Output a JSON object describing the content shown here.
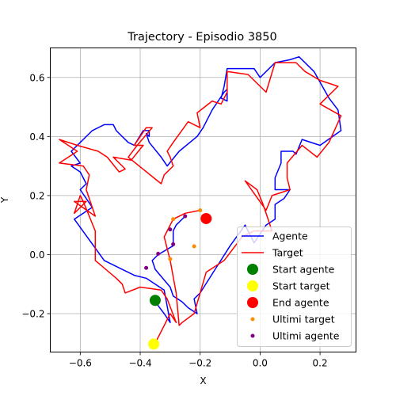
{
  "chart_data": {
    "type": "line",
    "title": "Trajectory - Episodio 3850",
    "xlabel": "X",
    "ylabel": "Y",
    "xlim": [
      -0.7,
      0.32
    ],
    "ylim": [
      -0.33,
      0.7
    ],
    "x_ticks": [
      -0.6,
      -0.4,
      -0.2,
      0.0,
      0.2
    ],
    "x_tick_labels": [
      "−0.6",
      "−0.4",
      "−0.2",
      "0.0",
      "0.2"
    ],
    "y_ticks": [
      -0.2,
      0.0,
      0.2,
      0.4,
      0.6
    ],
    "y_tick_labels": [
      "−0.2",
      "0.0",
      "0.2",
      "0.4",
      "0.6"
    ],
    "grid": true,
    "legend_position": "lower-right",
    "series": [
      {
        "name": "Agente",
        "kind": "line",
        "color": "#0000ff",
        "points": [
          [
            -0.35,
            -0.16
          ],
          [
            -0.32,
            -0.2
          ],
          [
            -0.3,
            -0.23
          ],
          [
            -0.32,
            -0.12
          ],
          [
            -0.38,
            -0.08
          ],
          [
            -0.42,
            -0.07
          ],
          [
            -0.52,
            -0.02
          ],
          [
            -0.62,
            0.12
          ],
          [
            -0.56,
            0.16
          ],
          [
            -0.6,
            0.22
          ],
          [
            -0.58,
            0.24
          ],
          [
            -0.6,
            0.28
          ],
          [
            -0.63,
            0.3
          ],
          [
            -0.6,
            0.31
          ],
          [
            -0.63,
            0.35
          ],
          [
            -0.6,
            0.38
          ],
          [
            -0.56,
            0.42
          ],
          [
            -0.52,
            0.44
          ],
          [
            -0.49,
            0.44
          ],
          [
            -0.48,
            0.42
          ],
          [
            -0.47,
            0.41
          ],
          [
            -0.44,
            0.38
          ],
          [
            -0.42,
            0.37
          ],
          [
            -0.39,
            0.42
          ],
          [
            -0.37,
            0.42
          ],
          [
            -0.37,
            0.4
          ],
          [
            -0.38,
            0.41
          ],
          [
            -0.37,
            0.38
          ],
          [
            -0.33,
            0.33
          ],
          [
            -0.31,
            0.3
          ],
          [
            -0.27,
            0.35
          ],
          [
            -0.21,
            0.4
          ],
          [
            -0.19,
            0.43
          ],
          [
            -0.16,
            0.49
          ],
          [
            -0.12,
            0.55
          ],
          [
            -0.11,
            0.56
          ],
          [
            -0.11,
            0.52
          ],
          [
            -0.13,
            0.53
          ],
          [
            -0.12,
            0.57
          ],
          [
            -0.11,
            0.63
          ],
          [
            -0.02,
            0.63
          ],
          [
            0.0,
            0.6
          ],
          [
            0.05,
            0.65
          ],
          [
            0.1,
            0.66
          ],
          [
            0.13,
            0.67
          ],
          [
            0.18,
            0.62
          ],
          [
            0.23,
            0.53
          ],
          [
            0.26,
            0.49
          ],
          [
            0.27,
            0.42
          ],
          [
            0.2,
            0.37
          ],
          [
            0.14,
            0.39
          ],
          [
            0.12,
            0.34
          ],
          [
            0.11,
            0.35
          ],
          [
            0.07,
            0.35
          ],
          [
            0.07,
            0.31
          ],
          [
            0.05,
            0.26
          ],
          [
            0.05,
            0.22
          ],
          [
            0.1,
            0.22
          ],
          [
            0.08,
            0.19
          ],
          [
            0.05,
            0.17
          ],
          [
            0.05,
            0.12
          ],
          [
            0.02,
            0.1
          ],
          [
            -0.02,
            0.04
          ],
          [
            -0.05,
            0.1
          ],
          [
            -0.1,
            0.03
          ],
          [
            -0.15,
            -0.05
          ],
          [
            -0.2,
            -0.13
          ],
          [
            -0.22,
            -0.15
          ],
          [
            -0.21,
            -0.2
          ],
          [
            -0.24,
            -0.18
          ],
          [
            -0.26,
            -0.16
          ],
          [
            -0.29,
            -0.14
          ],
          [
            -0.3,
            -0.11
          ],
          [
            -0.35,
            -0.05
          ],
          [
            -0.36,
            -0.02
          ],
          [
            -0.34,
            0.0
          ],
          [
            -0.29,
            0.03
          ],
          [
            -0.29,
            0.08
          ],
          [
            -0.28,
            0.1
          ],
          [
            -0.25,
            0.13
          ]
        ]
      },
      {
        "name": "Target",
        "kind": "line",
        "color": "#ff0000",
        "points": [
          [
            -0.35,
            -0.3
          ],
          [
            -0.3,
            -0.2
          ],
          [
            -0.28,
            -0.23
          ],
          [
            -0.31,
            -0.15
          ],
          [
            -0.33,
            -0.12
          ],
          [
            -0.4,
            -0.11
          ],
          [
            -0.45,
            -0.13
          ],
          [
            -0.46,
            -0.1
          ],
          [
            -0.48,
            -0.08
          ],
          [
            -0.55,
            -0.02
          ],
          [
            -0.55,
            0.08
          ],
          [
            -0.59,
            0.18
          ],
          [
            -0.6,
            0.2
          ],
          [
            -0.62,
            0.14
          ],
          [
            -0.58,
            0.18
          ],
          [
            -0.62,
            0.18
          ],
          [
            -0.55,
            0.13
          ],
          [
            -0.58,
            0.22
          ],
          [
            -0.57,
            0.27
          ],
          [
            -0.59,
            0.3
          ],
          [
            -0.67,
            0.31
          ],
          [
            -0.61,
            0.35
          ],
          [
            -0.67,
            0.39
          ],
          [
            -0.61,
            0.37
          ],
          [
            -0.54,
            0.35
          ],
          [
            -0.51,
            0.33
          ],
          [
            -0.47,
            0.28
          ],
          [
            -0.45,
            0.29
          ],
          [
            -0.49,
            0.33
          ],
          [
            -0.43,
            0.32
          ],
          [
            -0.39,
            0.37
          ],
          [
            -0.42,
            0.37
          ],
          [
            -0.38,
            0.43
          ],
          [
            -0.36,
            0.43
          ],
          [
            -0.41,
            0.37
          ],
          [
            -0.44,
            0.33
          ],
          [
            -0.33,
            0.24
          ],
          [
            -0.32,
            0.27
          ],
          [
            -0.29,
            0.3
          ],
          [
            -0.3,
            0.33
          ],
          [
            -0.31,
            0.35
          ],
          [
            -0.29,
            0.38
          ],
          [
            -0.24,
            0.45
          ],
          [
            -0.2,
            0.43
          ],
          [
            -0.21,
            0.48
          ],
          [
            -0.16,
            0.52
          ],
          [
            -0.13,
            0.51
          ],
          [
            -0.11,
            0.55
          ],
          [
            -0.11,
            0.62
          ],
          [
            -0.04,
            0.61
          ],
          [
            0.02,
            0.55
          ],
          [
            0.05,
            0.65
          ],
          [
            0.12,
            0.65
          ],
          [
            0.15,
            0.62
          ],
          [
            0.2,
            0.59
          ],
          [
            0.26,
            0.57
          ],
          [
            0.2,
            0.51
          ],
          [
            0.27,
            0.47
          ],
          [
            0.23,
            0.38
          ],
          [
            0.19,
            0.33
          ],
          [
            0.14,
            0.37
          ],
          [
            0.09,
            0.31
          ],
          [
            0.09,
            0.26
          ],
          [
            0.1,
            0.22
          ],
          [
            0.04,
            0.2
          ],
          [
            0.02,
            0.15
          ],
          [
            -0.05,
            0.25
          ],
          [
            -0.01,
            0.22
          ],
          [
            0.01,
            0.17
          ],
          [
            0.04,
            0.08
          ],
          [
            -0.02,
            0.08
          ],
          [
            -0.06,
            0.06
          ],
          [
            -0.12,
            -0.02
          ],
          [
            -0.18,
            -0.06
          ],
          [
            -0.22,
            -0.2
          ],
          [
            -0.26,
            -0.23
          ],
          [
            -0.27,
            -0.24
          ],
          [
            -0.28,
            -0.13
          ],
          [
            -0.3,
            -0.02
          ],
          [
            -0.32,
            0.06
          ],
          [
            -0.29,
            0.12
          ],
          [
            -0.25,
            0.14
          ],
          [
            -0.2,
            0.15
          ]
        ]
      },
      {
        "name": "Ultimi target",
        "kind": "scatter",
        "color": "#ff8c00",
        "points": [
          [
            -0.3,
            -0.015
          ],
          [
            -0.29,
            0.12
          ],
          [
            -0.22,
            0.028
          ],
          [
            -0.2,
            0.15
          ],
          [
            -0.19,
            0.13
          ]
        ]
      },
      {
        "name": "Ultimi agente",
        "kind": "scatter",
        "color": "#800080",
        "points": [
          [
            -0.38,
            -0.045
          ],
          [
            -0.34,
            0.003
          ],
          [
            -0.29,
            0.035
          ],
          [
            -0.3,
            0.085
          ],
          [
            -0.25,
            0.13
          ]
        ]
      },
      {
        "name": "Start agente",
        "kind": "marker",
        "color": "#008000",
        "points": [
          [
            -0.35,
            -0.155
          ]
        ]
      },
      {
        "name": "Start target",
        "kind": "marker",
        "color": "#ffff00",
        "points": [
          [
            -0.355,
            -0.303
          ]
        ]
      },
      {
        "name": "End agente",
        "kind": "marker",
        "color": "#ff0000",
        "points": [
          [
            -0.18,
            0.122
          ]
        ]
      }
    ],
    "legend": [
      {
        "label": "Agente",
        "kind": "line",
        "color": "#0000ff"
      },
      {
        "label": "Target",
        "kind": "line",
        "color": "#ff0000"
      },
      {
        "label": "Start agente",
        "kind": "marker",
        "color": "#008000"
      },
      {
        "label": "Start target",
        "kind": "marker",
        "color": "#ffff00"
      },
      {
        "label": "End agente",
        "kind": "marker",
        "color": "#ff0000"
      },
      {
        "label": "Ultimi target",
        "kind": "dot",
        "color": "#ff8c00"
      },
      {
        "label": "Ultimi agente",
        "kind": "dot",
        "color": "#800080"
      }
    ]
  }
}
